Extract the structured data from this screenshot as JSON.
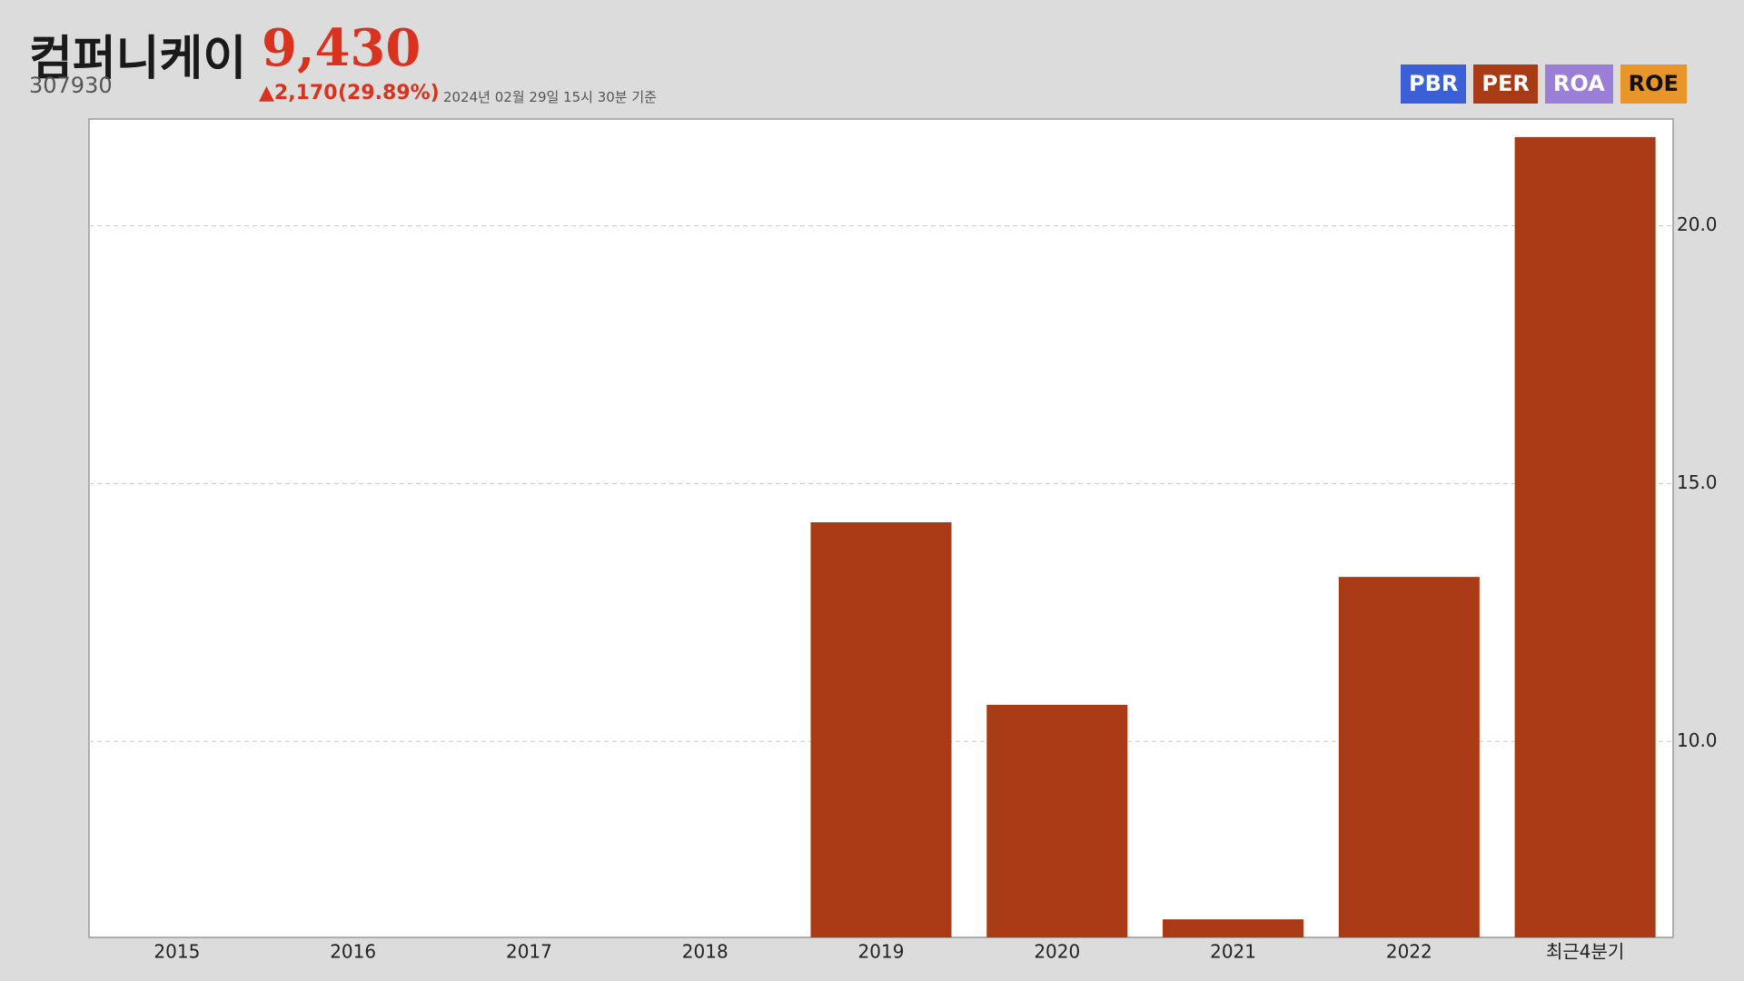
{
  "header": {
    "title": "컴퍼니케이",
    "price": "9,430",
    "code": "307930",
    "change": "▲2,170",
    "change_rate": "(29.89%)",
    "timestamp": "2024년 02월 29일 15시 30분 기준"
  },
  "buttons": [
    {
      "label": "PBR",
      "color": "#3a5fd6"
    },
    {
      "label": "PER",
      "color": "#a83a15"
    },
    {
      "label": "ROA",
      "color": "#9b7fd6"
    },
    {
      "label": "ROE",
      "color": "#e8952a"
    }
  ],
  "chart_data": {
    "type": "bar",
    "categories": [
      "2015",
      "2016",
      "2017",
      "2018",
      "2019",
      "2020",
      "2021",
      "2022",
      "최근4분기"
    ],
    "values": [
      null,
      null,
      null,
      null,
      14.25,
      10.71,
      6.55,
      13.19,
      21.72
    ],
    "color": "#a83a15",
    "ylim": [
      6.2,
      22.07
    ],
    "yticks": [
      {
        "value": 10,
        "label": "10.0"
      },
      {
        "value": 15,
        "label": "15.0"
      },
      {
        "value": 20,
        "label": "20.0"
      }
    ],
    "grid": true
  }
}
